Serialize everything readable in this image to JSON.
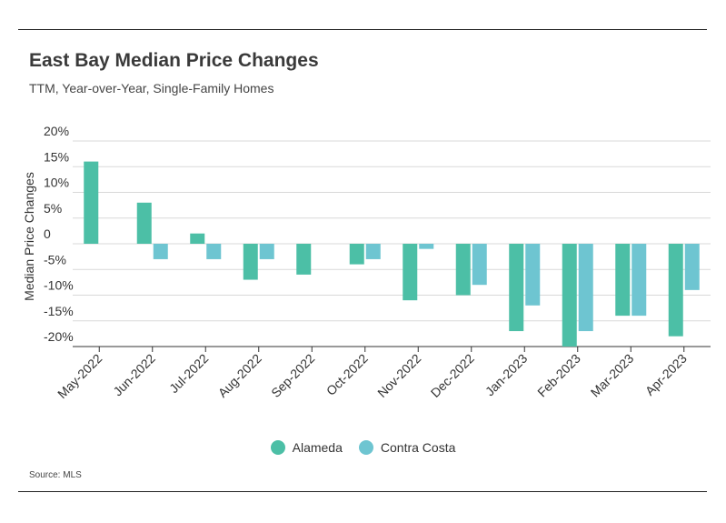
{
  "header": {
    "title": "East Bay Median Price Changes",
    "subtitle": "TTM, Year-over-Year, Single-Family Homes"
  },
  "footer": {
    "source": "Source: MLS"
  },
  "colors": {
    "alameda": "#4cbfa6",
    "contra_costa": "#6ec5d1"
  },
  "chart_data": {
    "type": "bar",
    "title": "East Bay Median Price Changes",
    "subtitle": "TTM, Year-over-Year, Single-Family Homes",
    "xlabel": "",
    "ylabel": "Median Price Changes",
    "ylim": [
      -20,
      20
    ],
    "yticks": [
      20,
      15,
      10,
      5,
      0,
      -5,
      -10,
      -15,
      -20
    ],
    "ytick_labels": [
      "20%",
      "15%",
      "10%",
      "5%",
      "0",
      "-5%",
      "-10%",
      "-15%",
      "-20%"
    ],
    "grid": true,
    "legend_position": "bottom",
    "categories": [
      "May-2022",
      "Jun-2022",
      "Jul-2022",
      "Aug-2022",
      "Sep-2022",
      "Oct-2022",
      "Nov-2022",
      "Dec-2022",
      "Jan-2023",
      "Feb-2023",
      "Mar-2023",
      "Apr-2023"
    ],
    "series": [
      {
        "name": "Alameda",
        "values": [
          16,
          8,
          2,
          -7,
          -6,
          -4,
          -11,
          -10,
          -17,
          -20,
          -14,
          -18
        ]
      },
      {
        "name": "Contra Costa",
        "values": [
          null,
          -3,
          -3,
          -3,
          null,
          -3,
          -1,
          -8,
          -12,
          -17,
          -14,
          -9
        ]
      }
    ]
  }
}
